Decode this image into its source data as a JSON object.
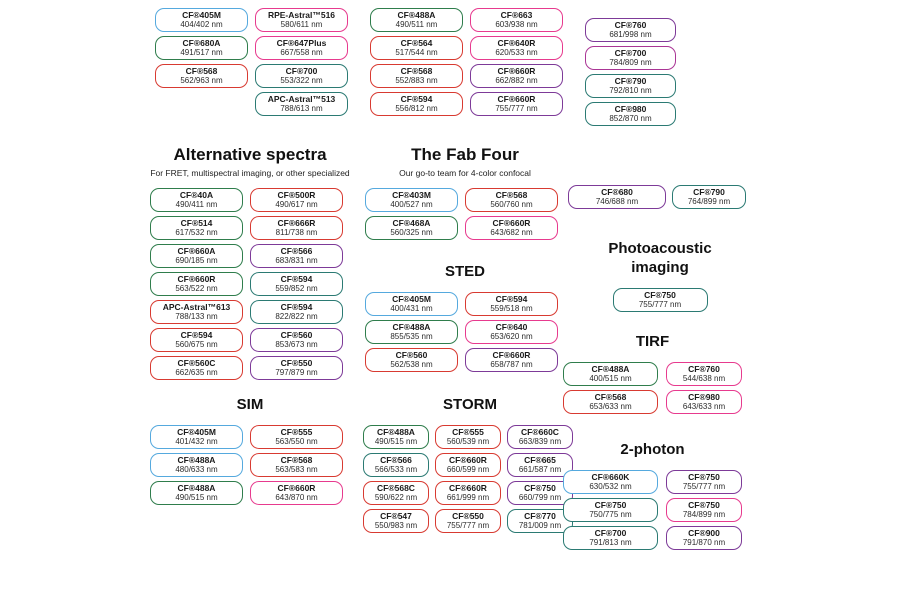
{
  "colors": {
    "blue": "#55a9de",
    "green": "#2f7d4c",
    "teal": "#2b7a73",
    "red": "#d83a31",
    "pink": "#e73a8e",
    "purple": "#7d3a98",
    "magenta": "#aa3595"
  },
  "clusters": {
    "top_a": {
      "items": [
        {
          "name": "CF®405M",
          "value": "404/402 nm",
          "color": "blue"
        },
        {
          "name": "CF®680A",
          "value": "491/517 nm",
          "color": "green"
        },
        {
          "name": "CF®568",
          "value": "562/963 nm",
          "color": "red"
        }
      ]
    },
    "top_b": {
      "items": [
        {
          "name": "RPE-Astral™516",
          "value": "580/611 nm",
          "color": "pink"
        },
        {
          "name": "CF®647Plus",
          "value": "667/558 nm",
          "color": "pink"
        },
        {
          "name": "CF®700",
          "value": "553/322 nm",
          "color": "teal"
        },
        {
          "name": "APC-Astral™513",
          "value": "788/613 nm",
          "color": "teal"
        }
      ]
    },
    "top_c": {
      "items": [
        {
          "name": "CF®488A",
          "value": "490/511 nm",
          "color": "green"
        },
        {
          "name": "CF®564",
          "value": "517/544 nm",
          "color": "red"
        },
        {
          "name": "CF®568",
          "value": "552/883 nm",
          "color": "red"
        },
        {
          "name": "CF®594",
          "value": "556/812 nm",
          "color": "red"
        }
      ]
    },
    "top_d": {
      "items": [
        {
          "name": "CF®663",
          "value": "603/938 nm",
          "color": "pink"
        },
        {
          "name": "CF®640R",
          "value": "620/533 nm",
          "color": "pink"
        },
        {
          "name": "CF®660R",
          "value": "662/882 nm",
          "color": "purple"
        },
        {
          "name": "CF®660R",
          "value": "755/777 nm",
          "color": "purple"
        }
      ]
    },
    "top_e": {
      "items": [
        {
          "name": "CF®760",
          "value": "681/998 nm",
          "color": "purple"
        },
        {
          "name": "CF®700",
          "value": "784/809 nm",
          "color": "magenta"
        },
        {
          "name": "CF®790",
          "value": "792/810 nm",
          "color": "teal"
        },
        {
          "name": "CF®980",
          "value": "852/870 nm",
          "color": "teal"
        }
      ]
    },
    "alternative": {
      "title": "Alternative spectra",
      "subtitle": "For FRET, multispectral imaging, or other specialized",
      "items": [
        {
          "name": "CF®40A",
          "value": "490/411 nm",
          "color": "green"
        },
        {
          "name": "CF®500R",
          "value": "490/617 nm",
          "color": "red"
        },
        {
          "name": "CF®514",
          "value": "617/532 nm",
          "color": "green"
        },
        {
          "name": "CF®666R",
          "value": "811/738 nm",
          "color": "red"
        },
        {
          "name": "CF®660A",
          "value": "690/185 nm",
          "color": "green"
        },
        {
          "name": "CF®566",
          "value": "683/831 nm",
          "color": "purple"
        },
        {
          "name": "CF®660R",
          "value": "563/522 nm",
          "color": "green"
        },
        {
          "name": "CF®594",
          "value": "559/852 nm",
          "color": "teal"
        },
        {
          "name": "APC-Astral™613",
          "value": "788/133 nm",
          "color": "red"
        },
        {
          "name": "CF®594",
          "value": "822/822 nm",
          "color": "teal"
        },
        {
          "name": "CF®594",
          "value": "560/675 nm",
          "color": "red"
        },
        {
          "name": "CF®560",
          "value": "853/673 nm",
          "color": "purple"
        },
        {
          "name": "CF®560C",
          "value": "662/635 nm",
          "color": "red"
        },
        {
          "name": "CF®550",
          "value": "797/879 nm",
          "color": "purple"
        }
      ]
    },
    "fab_four": {
      "title": "The Fab Four",
      "subtitle": "Our go-to team for 4-color confocal",
      "items": [
        {
          "name": "CF®403M",
          "value": "400/527 nm",
          "color": "blue"
        },
        {
          "name": "CF®568",
          "value": "560/760 nm",
          "color": "red"
        },
        {
          "name": "CF®468A",
          "value": "560/325 nm",
          "color": "green"
        },
        {
          "name": "CF®660R",
          "value": "643/682 nm",
          "color": "pink"
        }
      ]
    },
    "sted": {
      "title": "STED",
      "items": [
        {
          "name": "CF®405M",
          "value": "400/431 nm",
          "color": "blue"
        },
        {
          "name": "CF®594",
          "value": "559/518 nm",
          "color": "red"
        },
        {
          "name": "CF®488A",
          "value": "855/535 nm",
          "color": "green"
        },
        {
          "name": "CF®640",
          "value": "653/620 nm",
          "color": "pink"
        },
        {
          "name": "CF®560",
          "value": "562/538 nm",
          "color": "red"
        },
        {
          "name": "CF®660R",
          "value": "658/787 nm",
          "color": "purple"
        }
      ]
    },
    "sim": {
      "title": "SIM",
      "items": [
        {
          "name": "CF®405M",
          "value": "401/432 nm",
          "color": "blue"
        },
        {
          "name": "CF®555",
          "value": "563/550 nm",
          "color": "red"
        },
        {
          "name": "CF®488A",
          "value": "480/633 nm",
          "color": "blue"
        },
        {
          "name": "CF®568",
          "value": "563/583 nm",
          "color": "red"
        },
        {
          "name": "CF®488A",
          "value": "490/515 nm",
          "color": "green"
        },
        {
          "name": "CF®660R",
          "value": "643/870 nm",
          "color": "pink"
        }
      ]
    },
    "storm": {
      "title": "STORM",
      "items": [
        {
          "name": "CF®488A",
          "value": "490/515 nm",
          "color": "green"
        },
        {
          "name": "CF®555",
          "value": "560/539 nm",
          "color": "red"
        },
        {
          "name": "CF®660C",
          "value": "663/839 nm",
          "color": "purple"
        },
        {
          "name": "CF®566",
          "value": "566/533 nm",
          "color": "teal"
        },
        {
          "name": "CF®660R",
          "value": "660/599 nm",
          "color": "red"
        },
        {
          "name": "CF®665",
          "value": "661/587 nm",
          "color": "purple"
        },
        {
          "name": "CF®568C",
          "value": "590/622 nm",
          "color": "red"
        },
        {
          "name": "CF®660R",
          "value": "661/999 nm",
          "color": "red"
        },
        {
          "name": "CF®750",
          "value": "660/799 nm",
          "color": "purple"
        },
        {
          "name": "CF®547",
          "value": "550/983 nm",
          "color": "red"
        },
        {
          "name": "CF®550",
          "value": "755/777 nm",
          "color": "red"
        },
        {
          "name": "CF®770",
          "value": "781/009 nm",
          "color": "teal"
        }
      ]
    },
    "nir_pair": {
      "items": [
        {
          "name": "CF®680",
          "value": "746/688 nm",
          "color": "purple"
        },
        {
          "name": "CF®790",
          "value": "764/899 nm",
          "color": "teal"
        }
      ]
    },
    "photoacoustic": {
      "title": "Photoacoustic imaging",
      "items": [
        {
          "name": "CF®750",
          "value": "755/777 nm",
          "color": "teal"
        }
      ]
    },
    "tirf": {
      "title": "TIRF",
      "items": [
        {
          "name": "CF®488A",
          "value": "400/515 nm",
          "color": "green"
        },
        {
          "name": "CF®760",
          "value": "544/638 nm",
          "color": "pink"
        },
        {
          "name": "CF®568",
          "value": "653/633 nm",
          "color": "red"
        },
        {
          "name": "CF®980",
          "value": "643/633 nm",
          "color": "pink"
        }
      ]
    },
    "two_photon": {
      "title": "2-photon",
      "items": [
        {
          "name": "CF®660K",
          "value": "630/532 nm",
          "color": "blue"
        },
        {
          "name": "CF®750",
          "value": "755/777 nm",
          "color": "purple"
        },
        {
          "name": "CF®750",
          "value": "750/775 nm",
          "color": "teal"
        },
        {
          "name": "CF®750",
          "value": "784/899 nm",
          "color": "pink"
        },
        {
          "name": "CF®700",
          "value": "791/813 nm",
          "color": "teal"
        },
        {
          "name": "CF®900",
          "value": "791/870 nm",
          "color": "purple"
        }
      ]
    }
  }
}
